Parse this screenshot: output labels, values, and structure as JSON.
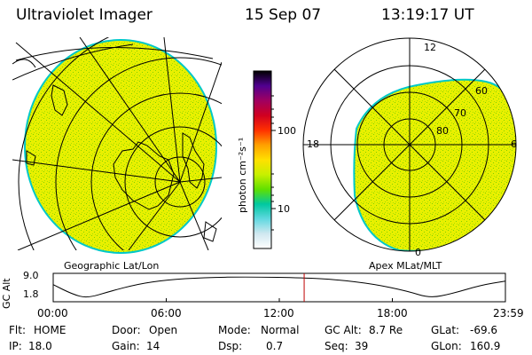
{
  "header": {
    "instrument": "Ultraviolet Imager",
    "date": "15 Sep 07",
    "time": "13:19:17 UT"
  },
  "colors": {
    "disk_fill": "#e8f000",
    "disk_speckle": "#7ed100",
    "disk_edge": "#00c8c8",
    "grid": "#000000",
    "time_marker": "#c00000"
  },
  "colorbar": {
    "unit_label": "photon cm⁻²s⁻¹",
    "scale": "log",
    "ticks": [
      "100",
      "10"
    ],
    "ramp": [
      "#ffffff",
      "#d0e8f0",
      "#60d8e0",
      "#00c8a0",
      "#60e000",
      "#c8f000",
      "#ffe000",
      "#ffa000",
      "#ff3000",
      "#d00020",
      "#a00060",
      "#500090",
      "#000000"
    ]
  },
  "geo_panel": {
    "caption": "Geographic Lat/Lon",
    "icon": "earth-disk-icon"
  },
  "polar_panel": {
    "caption": "Apex MLat/MLT",
    "mlt_labels": {
      "top": "12",
      "left": "18",
      "right": "6",
      "bottom": "0"
    },
    "lat_labels": [
      "60",
      "70",
      "80"
    ]
  },
  "altitude_plot": {
    "ylabel": "GC Alt",
    "y_ticks": [
      "9.0",
      "1.8"
    ],
    "y_range": [
      1.8,
      9.0
    ],
    "x_ticks": [
      "00:00",
      "06:00",
      "12:00",
      "18:00",
      "23:59"
    ],
    "x_range_hours": [
      0,
      24
    ],
    "curve": [
      {
        "t": 0.0,
        "alt": 6.4
      },
      {
        "t": 1.0,
        "alt": 3.2
      },
      {
        "t": 1.8,
        "alt": 1.8
      },
      {
        "t": 3.0,
        "alt": 4.1
      },
      {
        "t": 4.5,
        "alt": 6.6
      },
      {
        "t": 6.0,
        "alt": 8.0
      },
      {
        "t": 8.0,
        "alt": 8.8
      },
      {
        "t": 10.5,
        "alt": 9.0
      },
      {
        "t": 13.3,
        "alt": 8.7
      },
      {
        "t": 15.0,
        "alt": 8.1
      },
      {
        "t": 17.0,
        "alt": 6.6
      },
      {
        "t": 18.8,
        "alt": 4.2
      },
      {
        "t": 20.0,
        "alt": 1.8
      },
      {
        "t": 21.2,
        "alt": 3.4
      },
      {
        "t": 22.7,
        "alt": 6.2
      },
      {
        "t": 24.0,
        "alt": 7.6
      }
    ],
    "current_time_hours": 13.32
  },
  "status": {
    "row1": [
      {
        "label": "Flt:",
        "value": "HOME"
      },
      {
        "label": "Door:",
        "value": "Open"
      },
      {
        "label": "Mode:",
        "value": "Normal"
      },
      {
        "label": "GC Alt:",
        "value": "8.7 Re"
      },
      {
        "label": "GLat:",
        "value": "-69.6"
      }
    ],
    "row2": [
      {
        "label": "IP:",
        "value": "18.0"
      },
      {
        "label": "Gain:",
        "value": "14"
      },
      {
        "label": "Dsp:",
        "value": "0.7"
      },
      {
        "label": "Seq:",
        "value": "39"
      },
      {
        "label": "GLon:",
        "value": "160.9"
      }
    ]
  }
}
